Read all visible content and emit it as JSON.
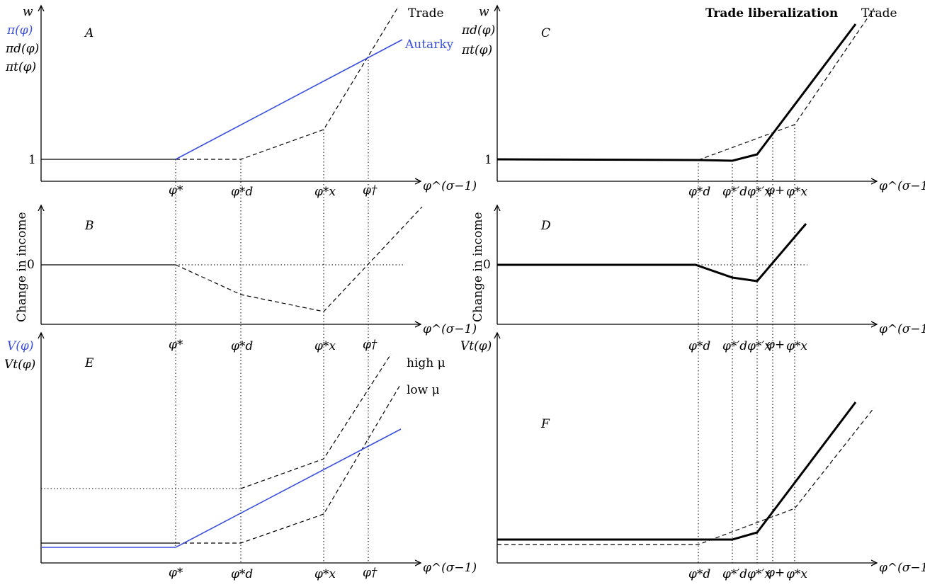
{
  "colors": {
    "autarky": "#3a4fe0",
    "trade": "#000000"
  },
  "x_axis_label": "φ^(σ−1)",
  "panels": {
    "A": {
      "letter": "A",
      "ylabels": [
        "w",
        "π(φ)",
        "πd(φ)",
        "πt(φ)"
      ],
      "y_tick": "1",
      "curve_labels": {
        "trade": "Trade",
        "autarky": "Autarky"
      },
      "x_ticks": [
        "φ*",
        "φ*d",
        "φ*x",
        "φ†"
      ]
    },
    "B": {
      "letter": "B",
      "ylabel": "Change in income",
      "y_tick": "0",
      "x_ticks": [
        "φ*",
        "φ*d",
        "φ*x",
        "φ†"
      ]
    },
    "C": {
      "letter": "C",
      "title": "Trade liberalization",
      "ylabels": [
        "w",
        "πd(φ)",
        "πt(φ)"
      ],
      "y_tick": "1",
      "curve_labels": {
        "trade": "Trade"
      },
      "x_ticks": [
        "φ*d",
        "φ*′d",
        "φ*′x",
        "φ+",
        "φ*x"
      ]
    },
    "D": {
      "letter": "D",
      "ylabel": "Change in income",
      "y_tick": "0",
      "x_ticks": [
        "φ*d",
        "φ*′d",
        "φ*′x",
        "φ+",
        "φ*x"
      ]
    },
    "E": {
      "letter": "E",
      "ylabels": [
        "V(φ)",
        "Vt(φ)"
      ],
      "curve_labels": {
        "high": "high μ",
        "low": "low μ"
      },
      "x_ticks": [
        "φ*",
        "φ*d",
        "φ*x",
        "φ†"
      ]
    },
    "F": {
      "letter": "F",
      "ylabels": [
        "Vt(φ)"
      ],
      "x_ticks": [
        "φ*d",
        "φ*′d",
        "φ*′x",
        "φ+",
        "φ*x"
      ]
    }
  }
}
